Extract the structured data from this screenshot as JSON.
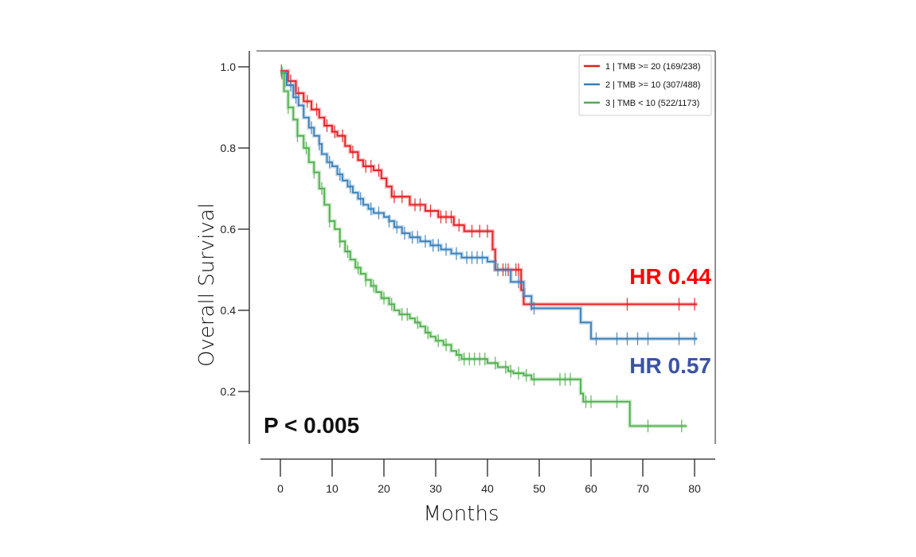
{
  "chart_data": {
    "type": "line",
    "subtype": "kaplan-meier",
    "title": "",
    "xlabel": "Months",
    "ylabel": "Overall Survival",
    "xlim": [
      -4,
      84
    ],
    "ylim": [
      0.09,
      1.04
    ],
    "xticks": [
      0,
      10,
      20,
      30,
      40,
      50,
      60,
      70,
      80
    ],
    "xtick_labels": [
      "0",
      "10",
      "20",
      "30",
      "40",
      "50",
      "60",
      "70",
      "80"
    ],
    "yticks": [
      0.2,
      0.4,
      0.6,
      0.8,
      1.0
    ],
    "ytick_labels": [
      "0.2",
      "0.4",
      "0.6",
      "0.8",
      "1.0"
    ],
    "grid": false,
    "legend_position": "top-right",
    "series": [
      {
        "name": "1 | TMB >= 20 (169/238)",
        "color": "#e41a1c",
        "steps": [
          [
            0,
            0.99
          ],
          [
            1.5,
            0.965
          ],
          [
            3,
            0.935
          ],
          [
            4.5,
            0.915
          ],
          [
            6,
            0.895
          ],
          [
            7.5,
            0.875
          ],
          [
            8.5,
            0.855
          ],
          [
            10,
            0.84
          ],
          [
            11,
            0.83
          ],
          [
            12.5,
            0.805
          ],
          [
            13.5,
            0.79
          ],
          [
            15,
            0.77
          ],
          [
            16,
            0.755
          ],
          [
            18,
            0.745
          ],
          [
            19.5,
            0.725
          ],
          [
            20.5,
            0.705
          ],
          [
            21.5,
            0.68
          ],
          [
            25,
            0.66
          ],
          [
            28,
            0.645
          ],
          [
            30.5,
            0.63
          ],
          [
            33.5,
            0.61
          ],
          [
            35.5,
            0.595
          ],
          [
            41,
            0.55
          ],
          [
            41.5,
            0.5
          ],
          [
            46.5,
            0.45
          ],
          [
            47,
            0.415
          ],
          [
            80.5,
            0.415
          ]
        ],
        "censor": [
          0.2,
          2,
          3.5,
          5.2,
          7,
          9,
          10.5,
          12,
          14,
          16.5,
          17.5,
          19,
          22,
          23.5,
          26,
          27,
          29,
          31,
          32,
          33,
          34.5,
          37,
          38.5,
          40,
          43,
          44,
          45.5,
          46,
          48.5,
          67,
          77,
          80
        ]
      },
      {
        "name": "2 | TMB >= 10 (307/488)",
        "color": "#377eb8",
        "steps": [
          [
            0,
            0.985
          ],
          [
            1.2,
            0.955
          ],
          [
            2.5,
            0.925
          ],
          [
            3.5,
            0.905
          ],
          [
            4.5,
            0.875
          ],
          [
            5.5,
            0.85
          ],
          [
            6.5,
            0.83
          ],
          [
            7.5,
            0.81
          ],
          [
            8,
            0.785
          ],
          [
            9,
            0.765
          ],
          [
            10,
            0.755
          ],
          [
            11,
            0.735
          ],
          [
            12,
            0.72
          ],
          [
            13,
            0.705
          ],
          [
            14,
            0.69
          ],
          [
            15,
            0.675
          ],
          [
            16,
            0.66
          ],
          [
            17,
            0.65
          ],
          [
            18,
            0.64
          ],
          [
            20,
            0.63
          ],
          [
            21,
            0.62
          ],
          [
            22,
            0.605
          ],
          [
            23.5,
            0.59
          ],
          [
            25,
            0.58
          ],
          [
            27,
            0.57
          ],
          [
            29,
            0.56
          ],
          [
            31,
            0.55
          ],
          [
            33,
            0.54
          ],
          [
            35,
            0.53
          ],
          [
            40,
            0.52
          ],
          [
            41.5,
            0.5
          ],
          [
            44.5,
            0.47
          ],
          [
            47,
            0.435
          ],
          [
            48.5,
            0.405
          ],
          [
            58,
            0.37
          ],
          [
            60,
            0.33
          ],
          [
            80.5,
            0.33
          ]
        ],
        "censor": [
          0.3,
          2,
          3,
          6,
          7.5,
          9.5,
          11.5,
          13.5,
          15.5,
          17.5,
          19,
          21,
          22.5,
          24,
          25.5,
          26.5,
          28,
          29.5,
          30.5,
          32,
          34,
          36,
          37,
          38,
          39,
          42,
          43.5,
          46,
          49,
          61,
          65,
          67,
          69,
          71,
          77,
          80
        ]
      },
      {
        "name": "3 | TMB < 10 (522/1173)",
        "color": "#4daf4a",
        "steps": [
          [
            0,
            0.985
          ],
          [
            0.7,
            0.94
          ],
          [
            1.5,
            0.9
          ],
          [
            2.5,
            0.87
          ],
          [
            3.3,
            0.83
          ],
          [
            4.5,
            0.8
          ],
          [
            5.5,
            0.765
          ],
          [
            6.5,
            0.74
          ],
          [
            7.5,
            0.7
          ],
          [
            8.5,
            0.66
          ],
          [
            9.5,
            0.62
          ],
          [
            10.5,
            0.6
          ],
          [
            11.5,
            0.57
          ],
          [
            12.5,
            0.545
          ],
          [
            13.5,
            0.525
          ],
          [
            14.5,
            0.505
          ],
          [
            15.5,
            0.49
          ],
          [
            16.5,
            0.475
          ],
          [
            17.5,
            0.46
          ],
          [
            18.5,
            0.445
          ],
          [
            19.5,
            0.43
          ],
          [
            21,
            0.415
          ],
          [
            22,
            0.4
          ],
          [
            23,
            0.39
          ],
          [
            25,
            0.38
          ],
          [
            26,
            0.37
          ],
          [
            27,
            0.36
          ],
          [
            28,
            0.345
          ],
          [
            29,
            0.335
          ],
          [
            30,
            0.325
          ],
          [
            31.5,
            0.315
          ],
          [
            33,
            0.3
          ],
          [
            34,
            0.29
          ],
          [
            35,
            0.28
          ],
          [
            40,
            0.27
          ],
          [
            42,
            0.26
          ],
          [
            44,
            0.25
          ],
          [
            45,
            0.245
          ],
          [
            47,
            0.24
          ],
          [
            48.5,
            0.23
          ],
          [
            58,
            0.195
          ],
          [
            58.5,
            0.175
          ],
          [
            67.5,
            0.115
          ],
          [
            78.5,
            0.115
          ]
        ],
        "censor": [
          0.3,
          1.5,
          3.3,
          5,
          6.5,
          8,
          9.5,
          11.5,
          13,
          15,
          16.5,
          18,
          20,
          21.5,
          23.5,
          24.5,
          26.5,
          28.5,
          30.5,
          32,
          34.5,
          35.5,
          36.5,
          37.5,
          38.5,
          39.5,
          41.5,
          43.5,
          44.5,
          46,
          47.5,
          49,
          54,
          55,
          56,
          59,
          60,
          65,
          71,
          77.5
        ]
      }
    ],
    "annotations": [
      {
        "text": "HR 0.44",
        "color": "#ff0000"
      },
      {
        "text": "HR 0.57",
        "color": "#3a53a4"
      },
      {
        "text": "P < 0.005",
        "color": "#111111"
      }
    ]
  }
}
